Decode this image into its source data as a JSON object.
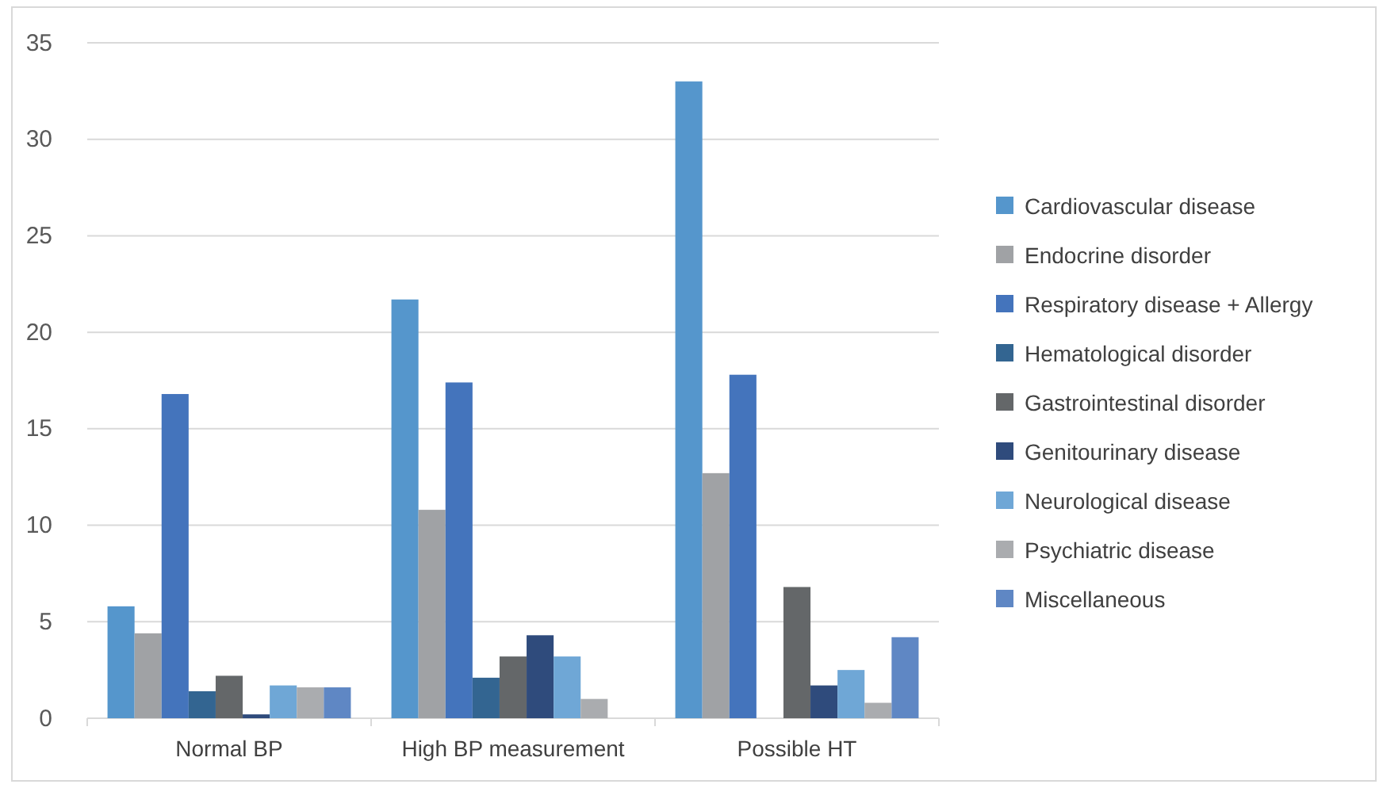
{
  "chart_data": {
    "type": "bar",
    "categories": [
      "Normal BP",
      "High BP measurement",
      "Possible HT"
    ],
    "ylim": [
      0,
      35
    ],
    "yticks": [
      0,
      5,
      10,
      15,
      20,
      25,
      30,
      35
    ],
    "grid": "y",
    "legend": "right",
    "series": [
      {
        "name": "Cardiovascular disease",
        "color": "#5596cc",
        "values": [
          5.8,
          21.7,
          33.0
        ]
      },
      {
        "name": "Endocrine disorder",
        "color": "#a0a2a5",
        "values": [
          4.4,
          10.8,
          12.7
        ]
      },
      {
        "name": "Respiratory disease + Allergy",
        "color": "#4474bc",
        "values": [
          16.8,
          17.4,
          17.8
        ]
      },
      {
        "name": "Hematological disorder",
        "color": "#336591",
        "values": [
          1.4,
          2.1,
          0
        ]
      },
      {
        "name": "Gastrointestinal disorder",
        "color": "#646769",
        "values": [
          2.2,
          3.2,
          6.8
        ]
      },
      {
        "name": "Genitourinary disease",
        "color": "#2f4b7c",
        "values": [
          0.2,
          4.3,
          1.7
        ]
      },
      {
        "name": "Neurological disease",
        "color": "#6fa7d6",
        "values": [
          1.7,
          3.2,
          2.5
        ]
      },
      {
        "name": "Psychiatric disease",
        "color": "#aaacaf",
        "values": [
          1.6,
          1.0,
          0.8
        ]
      },
      {
        "name": "Miscellaneous",
        "color": "#5f87c4",
        "values": [
          1.6,
          0,
          4.2
        ]
      }
    ]
  }
}
